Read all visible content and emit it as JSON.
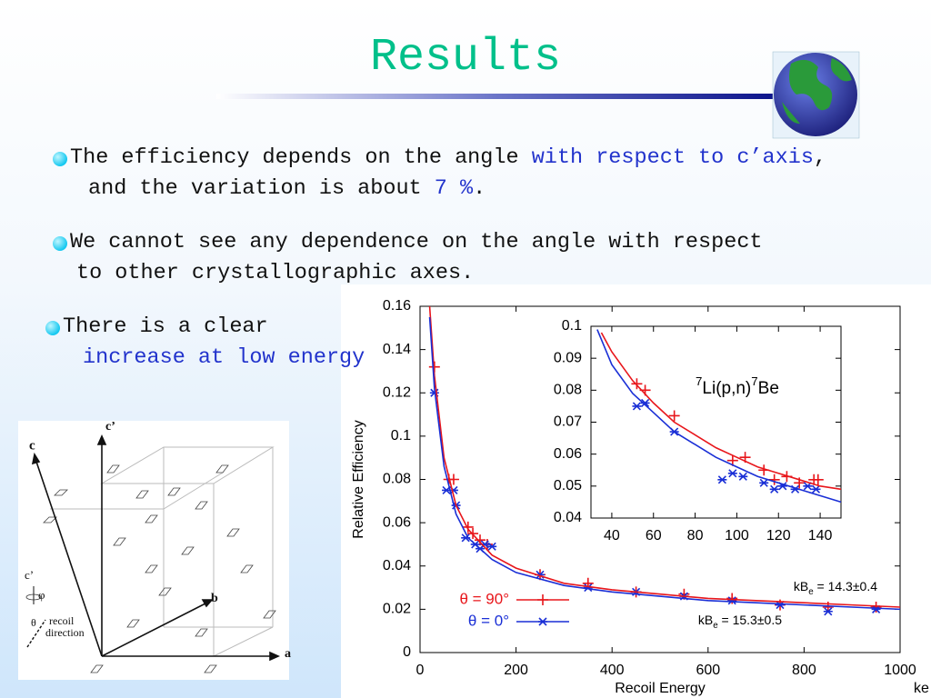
{
  "slide": {
    "title": "Results",
    "bullets": [
      [
        [
          {
            "text": "The efficiency depends on the angle "
          },
          {
            "text": "with respect to c’axis",
            "highlight": true
          },
          {
            "text": ","
          }
        ],
        [
          {
            "text": "and the variation is about "
          },
          {
            "text": "7 %",
            "highlight": true
          },
          {
            "text": "."
          }
        ]
      ],
      [
        [
          {
            "text": "We cannot see any dependence on the angle with respect"
          }
        ],
        [
          {
            "text": "to other crystallographic axes."
          }
        ]
      ],
      [
        [
          {
            "text": "There is a clear"
          }
        ],
        [
          {
            "text": "increase at low energy",
            "highlight": true
          }
        ]
      ]
    ],
    "diagram": {
      "labels": [
        "c",
        "c’",
        "a",
        "b",
        "c’",
        "φ",
        "θ",
        "recoil",
        "direction"
      ]
    }
  },
  "chart_data": [
    {
      "type": "scatter",
      "xlabel": "Recoil Energy",
      "xunit": "ke",
      "ylabel": "Relative Efficiency",
      "xlim": [
        0,
        1000
      ],
      "ylim": [
        0,
        0.16
      ],
      "xticks": [
        0,
        200,
        400,
        600,
        800,
        1000
      ],
      "yticks": [
        0,
        0.02,
        0.04,
        0.06,
        0.08,
        0.1,
        0.12,
        0.14,
        0.16
      ],
      "legend": "lower left",
      "series": [
        {
          "name": "θ = 90°",
          "color": "#e8161b",
          "marker": "plus",
          "x": [
            30,
            60,
            70,
            100,
            110,
            125,
            140,
            250,
            350,
            450,
            550,
            650,
            750,
            850,
            950
          ],
          "values": [
            0.132,
            0.08,
            0.08,
            0.058,
            0.055,
            0.052,
            0.05,
            0.036,
            0.032,
            0.028,
            0.027,
            0.025,
            0.022,
            0.021,
            0.021
          ]
        },
        {
          "name": "θ =  0°",
          "color": "#1a2fd6",
          "marker": "cross",
          "x": [
            30,
            55,
            70,
            75,
            95,
            115,
            125,
            135,
            150,
            250,
            350,
            450,
            550,
            650,
            750,
            850,
            950
          ],
          "values": [
            0.12,
            0.075,
            0.075,
            0.068,
            0.053,
            0.05,
            0.048,
            0.05,
            0.049,
            0.036,
            0.03,
            0.028,
            0.026,
            0.024,
            0.022,
            0.019,
            0.02
          ]
        },
        {
          "color": "#e8161b",
          "style": "line",
          "x": [
            20,
            30,
            50,
            75,
            100,
            150,
            200,
            300,
            400,
            500,
            600,
            700,
            800,
            900,
            1000
          ],
          "values": [
            0.16,
            0.128,
            0.09,
            0.068,
            0.057,
            0.045,
            0.039,
            0.032,
            0.029,
            0.027,
            0.025,
            0.024,
            0.023,
            0.022,
            0.021
          ]
        },
        {
          "color": "#1a2fd6",
          "style": "line",
          "x": [
            20,
            30,
            50,
            75,
            100,
            150,
            200,
            300,
            400,
            500,
            600,
            700,
            800,
            900,
            1000
          ],
          "values": [
            0.155,
            0.122,
            0.086,
            0.064,
            0.053,
            0.043,
            0.037,
            0.031,
            0.028,
            0.026,
            0.024,
            0.023,
            0.022,
            0.021,
            0.02
          ]
        }
      ],
      "annotations": [
        [
          {
            "text": "kB"
          },
          {
            "text": "e",
            "sub": true
          },
          {
            "text": " = 14.3±0.4"
          }
        ],
        [
          {
            "text": "kB"
          },
          {
            "text": "e",
            "sub": true
          },
          {
            "text": " = 15.3±0.5"
          }
        ]
      ]
    },
    {
      "type": "scatter",
      "xlim": [
        30,
        150
      ],
      "ylim": [
        0.04,
        0.1
      ],
      "xticks": [
        40,
        60,
        80,
        100,
        120,
        140
      ],
      "yticks": [
        0.04,
        0.05,
        0.06,
        0.07,
        0.08,
        0.09,
        0.1
      ],
      "series": [
        {
          "color": "#e8161b",
          "marker": "plus",
          "x": [
            52,
            56,
            70,
            98,
            104,
            113,
            118,
            124,
            130,
            137,
            139
          ],
          "values": [
            0.082,
            0.08,
            0.072,
            0.058,
            0.059,
            0.055,
            0.052,
            0.053,
            0.051,
            0.052,
            0.052
          ]
        },
        {
          "color": "#1a2fd6",
          "marker": "cross",
          "x": [
            52,
            56,
            70,
            93,
            98,
            103,
            113,
            118,
            122,
            128,
            134,
            138
          ],
          "values": [
            0.075,
            0.076,
            0.067,
            0.052,
            0.054,
            0.053,
            0.051,
            0.049,
            0.05,
            0.049,
            0.05,
            0.049
          ]
        },
        {
          "color": "#e8161b",
          "style": "line",
          "x": [
            35,
            40,
            50,
            60,
            70,
            80,
            90,
            100,
            110,
            120,
            130,
            140,
            150
          ],
          "values": [
            0.098,
            0.092,
            0.083,
            0.076,
            0.07,
            0.066,
            0.062,
            0.059,
            0.056,
            0.054,
            0.052,
            0.05,
            0.049
          ]
        },
        {
          "color": "#1a2fd6",
          "style": "line",
          "x": [
            33,
            40,
            50,
            60,
            70,
            80,
            90,
            100,
            110,
            120,
            130,
            140,
            150
          ],
          "values": [
            0.099,
            0.088,
            0.079,
            0.073,
            0.067,
            0.063,
            0.059,
            0.056,
            0.053,
            0.051,
            0.049,
            0.047,
            0.045
          ]
        }
      ],
      "annotations": [
        [
          {
            "text": "7",
            "sup": true
          },
          {
            "text": "Li(p,n)"
          },
          {
            "text": "7",
            "sup": true
          },
          {
            "text": "Be"
          }
        ]
      ]
    }
  ]
}
